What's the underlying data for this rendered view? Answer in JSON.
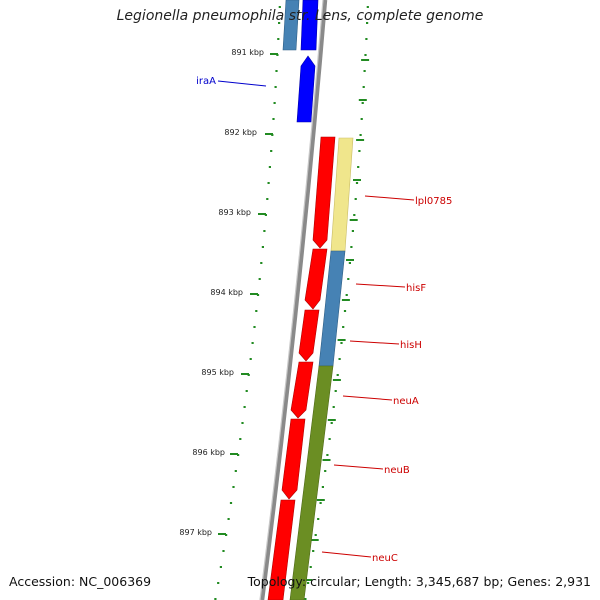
{
  "header": {
    "title": "Legionella pneumophila str. Lens, complete genome"
  },
  "footer": {
    "accession": "Accession: NC_006369",
    "summary": "Topology: circular; Length: 3,345,687 bp; Genes: 2,931"
  },
  "colors": {
    "backbone": "#888888",
    "tick": "#228b22",
    "cds_forward": "#0000ff",
    "cds_reverse": "#ff0000",
    "cog_steel": "#4682b4",
    "cog_yellow": "#f0e68c",
    "cog_olive": "#6b8e23",
    "label_forward": "#0000cc",
    "label_reverse": "#cc0000"
  },
  "scale": {
    "unit": "kbp",
    "labels": [
      "891 kbp",
      "892 kbp",
      "893 kbp",
      "894 kbp",
      "895 kbp",
      "896 kbp",
      "897 kbp"
    ]
  },
  "genes": [
    {
      "name": "iraA",
      "strand": "forward"
    },
    {
      "name": "lpl0785",
      "strand": "reverse"
    },
    {
      "name": "hisF",
      "strand": "reverse"
    },
    {
      "name": "hisH",
      "strand": "reverse"
    },
    {
      "name": "neuA",
      "strand": "reverse"
    },
    {
      "name": "neuB",
      "strand": "reverse"
    },
    {
      "name": "neuC",
      "strand": "reverse"
    }
  ]
}
